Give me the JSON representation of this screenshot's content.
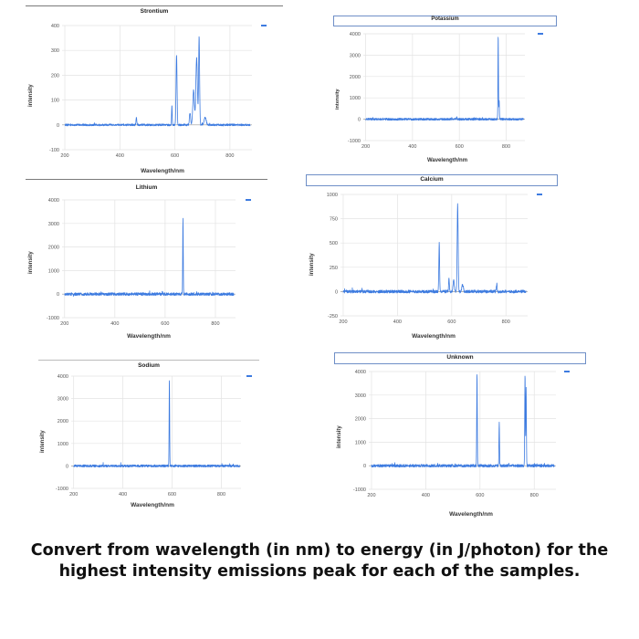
{
  "question": "Convert from wavelength (in nm) to energy (in J/photon) for the highest intensity emissions peak for each of the samples.",
  "colors": {
    "line": "#3d7be0",
    "grid": "#e3e3e3",
    "frame": "#7a7a7a",
    "title_border": "#6f8fc7"
  },
  "chart_data": [
    {
      "id": "strontium",
      "type": "line",
      "title": "Strontium",
      "xlabel": "Wavelength/nm",
      "ylabel": "intensity",
      "xlim": [
        190,
        880
      ],
      "ylim": [
        -100,
        400
      ],
      "xticks": [
        200,
        400,
        600,
        800
      ],
      "yticks": [
        -100,
        0,
        100,
        200,
        300,
        400
      ],
      "baseline_noise": 8,
      "peaks": [
        {
          "x": 460,
          "y": 28,
          "w": 2
        },
        {
          "x": 589,
          "y": 80,
          "w": 1.5
        },
        {
          "x": 606,
          "y": 285,
          "w": 2.5
        },
        {
          "x": 655,
          "y": 50,
          "w": 3
        },
        {
          "x": 668,
          "y": 140,
          "w": 4
        },
        {
          "x": 679,
          "y": 270,
          "w": 4
        },
        {
          "x": 688,
          "y": 355,
          "w": 2.5
        },
        {
          "x": 710,
          "y": 30,
          "w": 5
        }
      ]
    },
    {
      "id": "potassium",
      "type": "line",
      "title": "Potassium",
      "xlabel": "Wavelength/nm",
      "ylabel": "intensity",
      "xlim": [
        190,
        880
      ],
      "ylim": [
        -1000,
        4000
      ],
      "xticks": [
        200,
        400,
        600,
        800
      ],
      "yticks": [
        -1000,
        0,
        1000,
        2000,
        3000,
        4000
      ],
      "baseline_noise": 10,
      "peaks": [
        {
          "x": 589,
          "y": 150,
          "w": 1.5
        },
        {
          "x": 766,
          "y": 3950,
          "w": 1.5
        },
        {
          "x": 770,
          "y": 900,
          "w": 1.5
        }
      ]
    },
    {
      "id": "lithium",
      "type": "line",
      "title": "Lithium",
      "xlabel": "Wavelength/nm",
      "ylabel": "intensity",
      "xlim": [
        190,
        880
      ],
      "ylim": [
        -1000,
        4000
      ],
      "xticks": [
        200,
        400,
        600,
        800
      ],
      "yticks": [
        -1000,
        0,
        1000,
        2000,
        3000,
        4000
      ],
      "baseline_noise": 12,
      "peaks": [
        {
          "x": 589,
          "y": 120,
          "w": 1.5
        },
        {
          "x": 671,
          "y": 3250,
          "w": 1.5
        }
      ]
    },
    {
      "id": "calcium",
      "type": "line",
      "title": "Calcium",
      "xlabel": "Wavelength/nm",
      "ylabel": "intensity",
      "xlim": [
        190,
        880
      ],
      "ylim": [
        -250,
        1000
      ],
      "xticks": [
        200,
        400,
        600,
        800
      ],
      "yticks": [
        -250,
        0,
        250,
        500,
        750,
        1000
      ],
      "baseline_noise": 12,
      "peaks": [
        {
          "x": 554,
          "y": 500,
          "w": 2
        },
        {
          "x": 590,
          "y": 130,
          "w": 2
        },
        {
          "x": 607,
          "y": 120,
          "w": 3
        },
        {
          "x": 622,
          "y": 900,
          "w": 2.5
        },
        {
          "x": 640,
          "y": 70,
          "w": 4
        },
        {
          "x": 766,
          "y": 80,
          "w": 2
        }
      ]
    },
    {
      "id": "sodium",
      "type": "line",
      "title": "Sodium",
      "xlabel": "Wavelength/nm",
      "ylabel": "intensity",
      "xlim": [
        190,
        880
      ],
      "ylim": [
        -1000,
        4000
      ],
      "xticks": [
        200,
        400,
        600,
        800
      ],
      "yticks": [
        -1000,
        0,
        1000,
        2000,
        3000,
        4000
      ],
      "baseline_noise": 10,
      "peaks": [
        {
          "x": 589,
          "y": 3900,
          "w": 1.5
        }
      ]
    },
    {
      "id": "unknown",
      "type": "line",
      "title": "Unknown",
      "xlabel": "Wavelength/nm",
      "ylabel": "intensity",
      "xlim": [
        190,
        880
      ],
      "ylim": [
        -1000,
        4000
      ],
      "xticks": [
        200,
        400,
        600,
        800
      ],
      "yticks": [
        -1000,
        0,
        1000,
        2000,
        3000,
        4000
      ],
      "baseline_noise": 12,
      "peaks": [
        {
          "x": 589,
          "y": 3950,
          "w": 1.5
        },
        {
          "x": 671,
          "y": 1850,
          "w": 1.5
        },
        {
          "x": 766,
          "y": 3900,
          "w": 1.5
        },
        {
          "x": 770,
          "y": 3300,
          "w": 1.5
        }
      ]
    }
  ]
}
